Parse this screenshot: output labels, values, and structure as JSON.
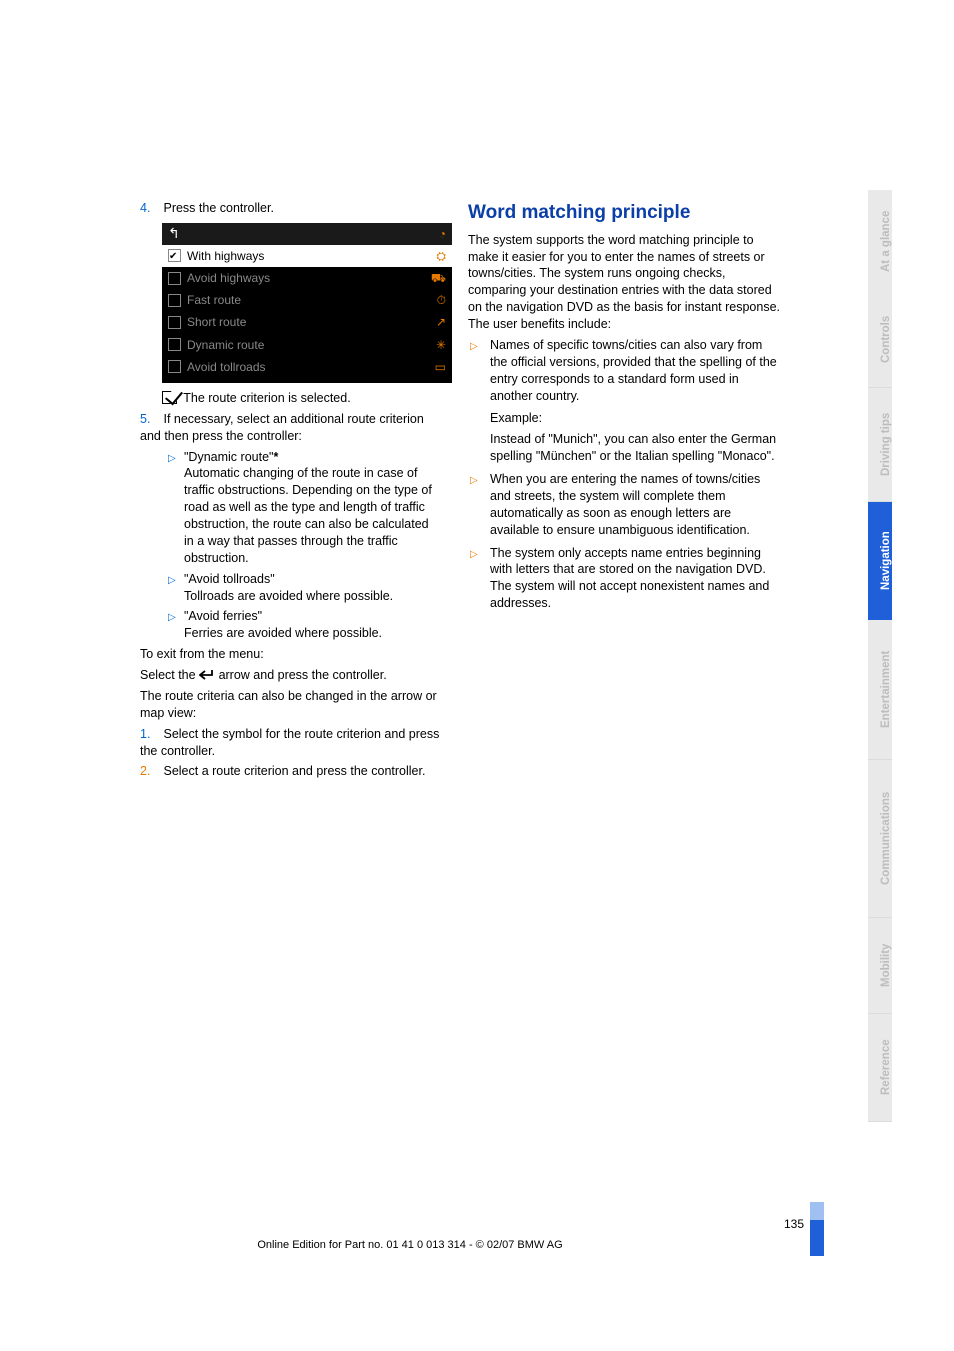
{
  "left": {
    "step4_num": "4.",
    "step4_text": "Press the controller.",
    "screenshot": {
      "rows": [
        {
          "checked": true,
          "label": "With highways",
          "selected": true,
          "icon": "⛭"
        },
        {
          "checked": false,
          "label": "Avoid highways",
          "selected": false,
          "icon": "⛟"
        },
        {
          "checked": false,
          "label": "Fast route",
          "selected": false,
          "icon": "⏱"
        },
        {
          "checked": false,
          "label": "Short route",
          "selected": false,
          "icon": "↗"
        },
        {
          "checked": false,
          "label": "Dynamic route",
          "selected": false,
          "icon": "✳"
        },
        {
          "checked": false,
          "label": "Avoid tollroads",
          "selected": false,
          "icon": "▭"
        }
      ]
    },
    "criterion_selected": "The route criterion is selected.",
    "step5_num": "5.",
    "step5_text": "If necessary, select an additional route criterion and then press the controller:",
    "opt_dynamic_label": "\"Dynamic route\"",
    "opt_dynamic_body": "Automatic changing of the route in case of traffic obstructions. Depending on the type of road as well as the type and length of traffic obstruction, the route can also be calculated in a way that passes through the traffic obstruction.",
    "opt_toll_label": "\"Avoid tollroads\"",
    "opt_toll_body": "Tollroads are avoided where possible.",
    "opt_ferry_label": "\"Avoid ferries\"",
    "opt_ferry_body": "Ferries are avoided where possible.",
    "exit_line": "To exit from the menu:",
    "exit_select_pre": "Select the ",
    "exit_select_post": " arrow and press the controller.",
    "route_criteria_change": "The route criteria can also be changed in the arrow or map view:",
    "view_step1_num": "1.",
    "view_step1_text": "Select the symbol for the route criterion and press the controller.",
    "view_step2_num": "2.",
    "view_step2_text": "Select a route criterion and press the controller."
  },
  "right": {
    "heading": "Word matching principle",
    "intro": "The system supports the word matching principle to make it easier for you to enter the names of streets or towns/cities. The system runs ongoing checks, comparing your destination entries with the data stored on the navigation DVD as the basis for instant response. The user benefits include:",
    "b1_line1": "Names of specific towns/cities can also vary from the official versions, provided that the spelling of the entry corresponds to a standard form used in another country.",
    "b1_example_label": "Example:",
    "b1_example_body": "Instead of \"Munich\", you can also enter the German spelling \"München\" or the Italian spelling \"Monaco\".",
    "b2": "When you are entering the names of towns/cities and streets, the system will complete them automatically as soon as enough letters are available to ensure unambiguous identification.",
    "b3": "The system only accepts name entries beginning with letters that are stored on the navigation DVD. The system will not accept nonexistent names and addresses."
  },
  "tabs": {
    "t1": "At a glance",
    "t2": "Controls",
    "t3": "Driving tips",
    "t4": "Navigation",
    "t5": "Entertainment",
    "t6": "Communications",
    "t7": "Mobility",
    "t8": "Reference",
    "heights": {
      "t1": 102,
      "t2": 96,
      "t3": 114,
      "t4": 118,
      "t5": 140,
      "t6": 158,
      "t7": 96,
      "t8": 108
    },
    "active_bg": "#1f5fd8",
    "inactive_bg": "#e9e9e9"
  },
  "footer": {
    "page_num": "135",
    "line": "Online Edition for Part no. 01 41 0 013 314 - © 02/07 BMW AG"
  }
}
